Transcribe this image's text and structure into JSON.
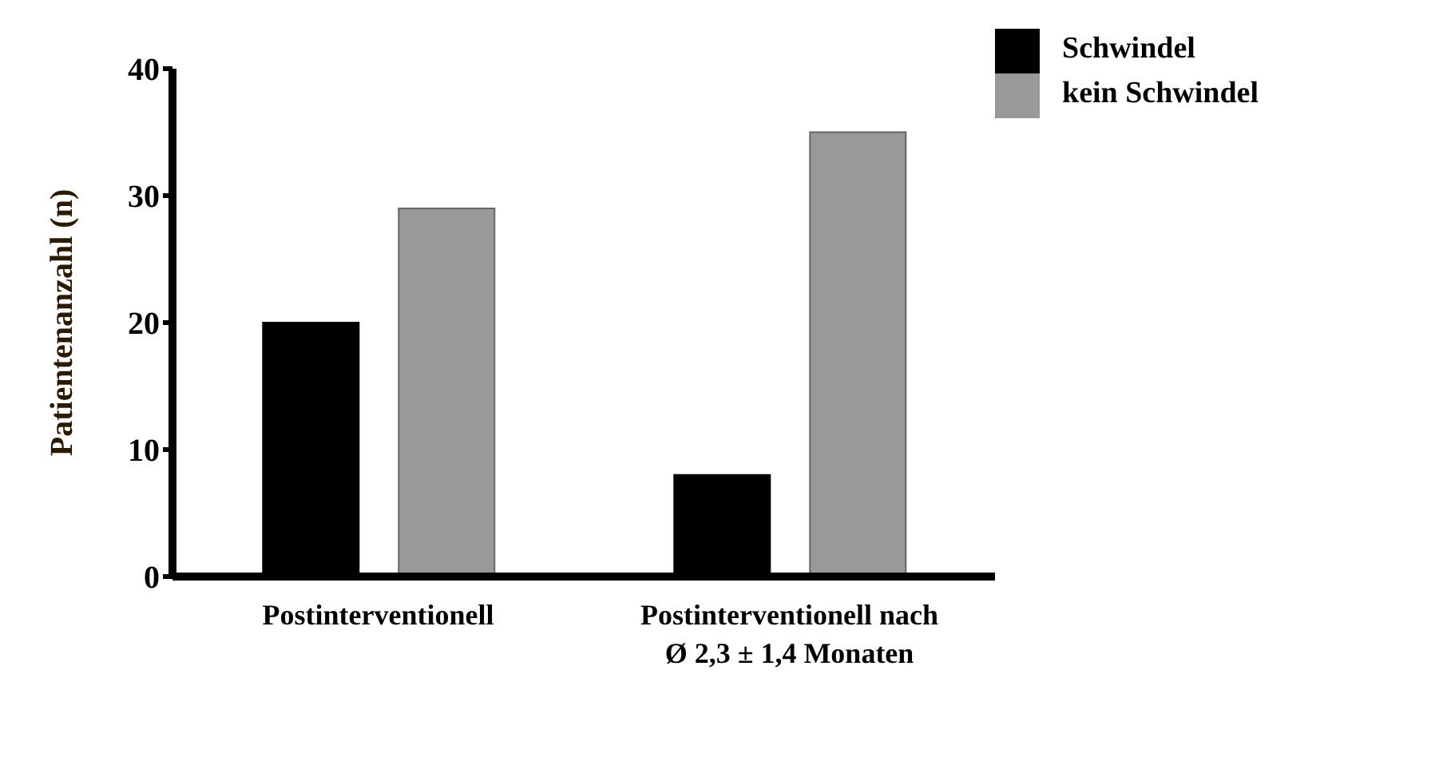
{
  "chart_data": {
    "type": "bar",
    "ylabel": "Patientenanzahl (n)",
    "categories": [
      "Postinterventionell",
      "Postinterventionell nach\nØ 2,3 ± 1,4 Monaten"
    ],
    "series": [
      {
        "name": "Schwindel",
        "color": "#000000",
        "values": [
          20,
          8
        ]
      },
      {
        "name": "kein Schwindel",
        "color": "#999999",
        "values": [
          29,
          35
        ]
      }
    ],
    "ylim": [
      0,
      40
    ],
    "yticks": [
      0,
      10,
      20,
      30,
      40
    ],
    "grid": false,
    "legend": "top right"
  }
}
